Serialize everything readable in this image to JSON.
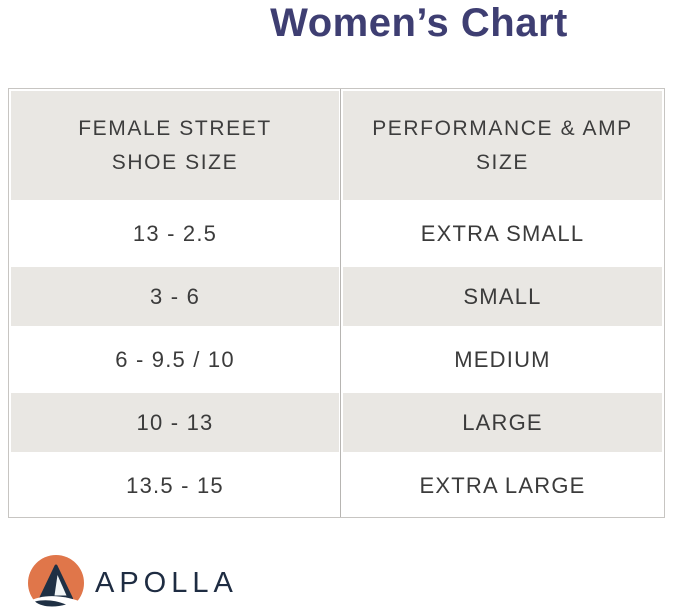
{
  "title": "Women’s Chart",
  "table": {
    "header": {
      "col1": "FEMALE STREET\nSHOE SIZE",
      "col2": "PERFORMANCE & AMP\nSIZE"
    },
    "rows": [
      {
        "shoe_size": "13 - 2.5",
        "amp_size": "EXTRA SMALL",
        "shaded": false
      },
      {
        "shoe_size": "3 - 6",
        "amp_size": "SMALL",
        "shaded": true
      },
      {
        "shoe_size": "6 - 9.5 / 10",
        "amp_size": "MEDIUM",
        "shaded": false
      },
      {
        "shoe_size": "10 - 13",
        "amp_size": "LARGE",
        "shaded": true
      },
      {
        "shoe_size": "13.5 - 15",
        "amp_size": "EXTRA LARGE",
        "shaded": false
      }
    ]
  },
  "brand": {
    "name": "APOLLA"
  },
  "colors": {
    "title_navy": "#3e3e72",
    "row_shade": "#e9e7e3",
    "cell_text": "#3b3b3b",
    "table_border": "#c7c5c2",
    "divider": "#b7b5b2",
    "logo_orange": "#e0764a",
    "logo_navy": "#1f3044",
    "brand_text": "#1e2c42"
  },
  "chart_data": {
    "type": "table",
    "title": "Women’s Chart",
    "columns": [
      "FEMALE STREET SHOE SIZE",
      "PERFORMANCE & AMP SIZE"
    ],
    "rows": [
      [
        "13 - 2.5",
        "EXTRA SMALL"
      ],
      [
        "3 - 6",
        "SMALL"
      ],
      [
        "6 - 9.5 / 10",
        "MEDIUM"
      ],
      [
        "10 - 13",
        "LARGE"
      ],
      [
        "13.5 - 15",
        "EXTRA LARGE"
      ]
    ]
  }
}
